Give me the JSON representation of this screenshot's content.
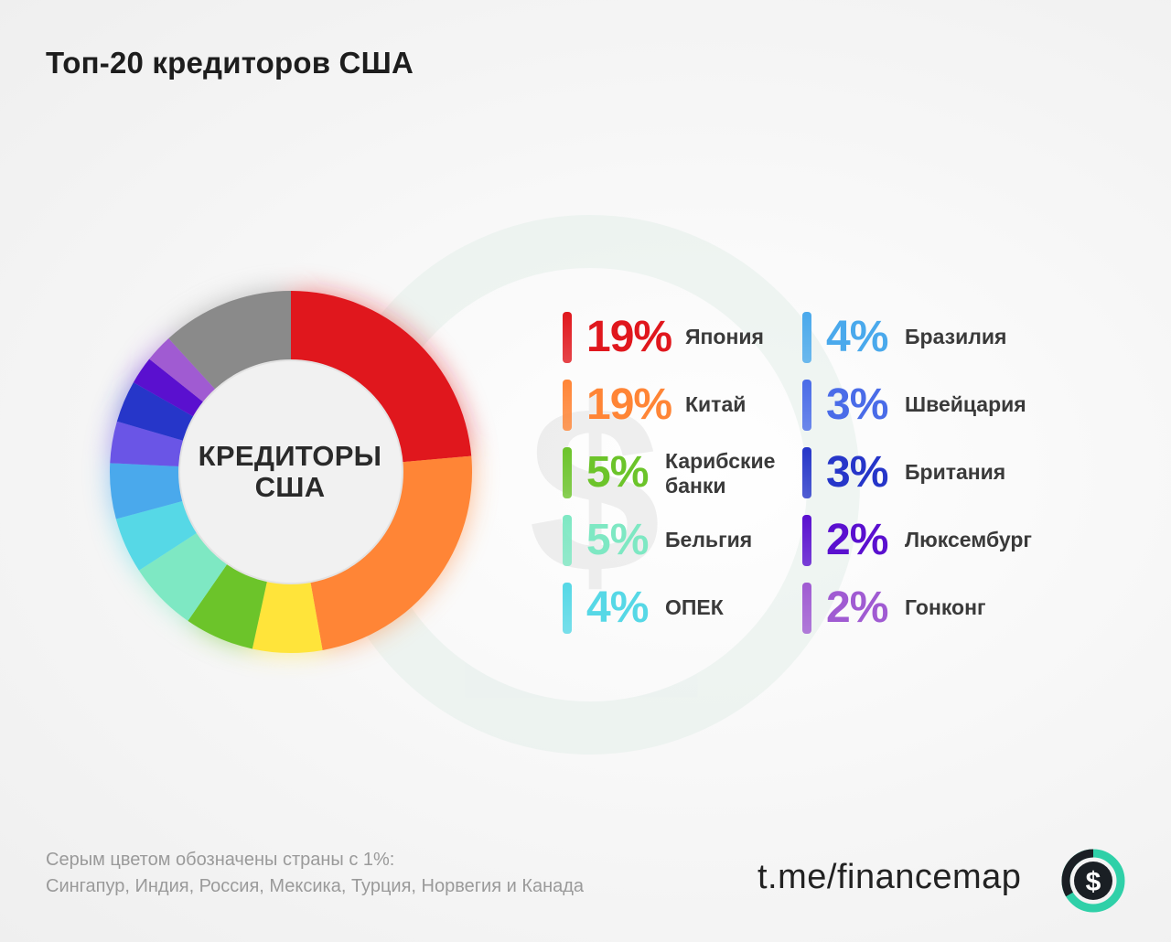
{
  "title": "Топ-20 кредиторов США",
  "center_label": [
    "КРЕДИТОРЫ",
    "США"
  ],
  "footnote": [
    "Серым цветом обозначены страны с 1%:",
    "Сингапур, Индия, Россия, Мексика, Турция, Норвегия и Канада"
  ],
  "brand": "t.me/financemap",
  "brand_logo_icon": "dollar-icon",
  "chart_data": {
    "type": "pie",
    "variant": "donut",
    "series": [
      {
        "name": "Япония",
        "value": 19,
        "label": "19%",
        "color": "#e0171d"
      },
      {
        "name": "Китай",
        "value": 19,
        "label": "19%",
        "color": "#ff8536"
      },
      {
        "name": "Карибские банки",
        "value": 5,
        "label": "5%",
        "color": "#6cc42a"
      },
      {
        "name": "Бельгия",
        "value": 5,
        "label": "5%",
        "color": "#7ee8c3"
      },
      {
        "name": "ОПЕК",
        "value": 4,
        "label": "4%",
        "color": "#56d8e6"
      },
      {
        "name": "Бразилия",
        "value": 4,
        "label": "4%",
        "color": "#4aa9ec"
      },
      {
        "name": "Швейцария",
        "value": 3,
        "label": "3%",
        "color": "#4a6ce8"
      },
      {
        "name": "Британия",
        "value": 3,
        "label": "3%",
        "color": "#2636c9"
      },
      {
        "name": "Люксембург",
        "value": 2,
        "label": "2%",
        "color": "#5a10cf"
      },
      {
        "name": "Гонконг",
        "value": 2,
        "label": "2%",
        "color": "#a05bd2"
      }
    ],
    "ring_slices": [
      {
        "value": 19,
        "color": "#e0171d"
      },
      {
        "value": 19,
        "color": "#ff8536"
      },
      {
        "value": 5,
        "color": "#ffe43a"
      },
      {
        "value": 5,
        "color": "#6cc42a"
      },
      {
        "value": 5,
        "color": "#7ee8c3"
      },
      {
        "value": 4,
        "color": "#56d8e6"
      },
      {
        "value": 4,
        "color": "#4aa9ec"
      },
      {
        "value": 3,
        "color": "#6a55e6"
      },
      {
        "value": 3,
        "color": "#2636c9"
      },
      {
        "value": 2,
        "color": "#5a10cf"
      },
      {
        "value": 2,
        "color": "#a05bd2"
      },
      {
        "value": 9.5,
        "color": "#8a8a8a"
      }
    ]
  }
}
